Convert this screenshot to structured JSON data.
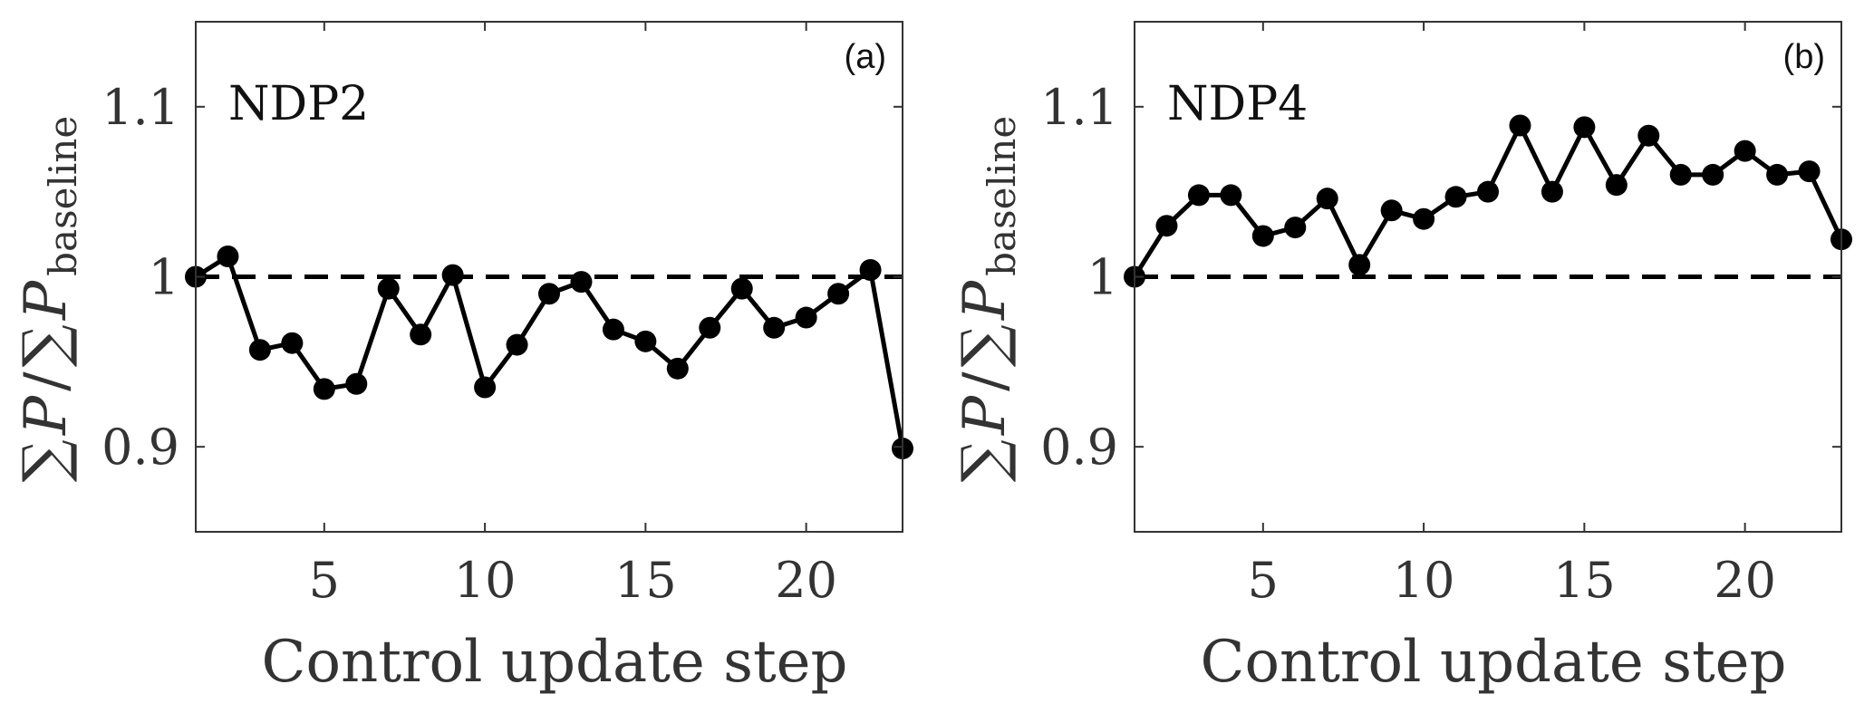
{
  "chart_data": [
    {
      "type": "line",
      "panel_label": "(a)",
      "title": "NDP2",
      "xlabel": "Control update step",
      "ylabel": {
        "sum1": "∑",
        "P1": "P",
        "slash": "/",
        "sum2": "∑",
        "P2": "P",
        "sub": "baseline"
      },
      "xlim": [
        1,
        23
      ],
      "ylim": [
        0.85,
        1.15
      ],
      "xticks": [
        5,
        10,
        15,
        20
      ],
      "xtick_labels": [
        "5",
        "10",
        "15",
        "20"
      ],
      "yticks": [
        0.9,
        1.0,
        1.1
      ],
      "ytick_labels": [
        "0.9",
        "1",
        "1.1"
      ],
      "reference_line": {
        "y": 1.0,
        "style": "dashed"
      },
      "series": [
        {
          "name": "NDP2",
          "marker": "circle",
          "x": [
            1,
            2,
            3,
            4,
            5,
            6,
            7,
            8,
            9,
            10,
            11,
            12,
            13,
            14,
            15,
            16,
            17,
            18,
            19,
            20,
            21,
            22,
            23
          ],
          "y": [
            1.0,
            1.012,
            0.957,
            0.961,
            0.934,
            0.937,
            0.993,
            0.966,
            1.001,
            0.935,
            0.96,
            0.99,
            0.997,
            0.969,
            0.962,
            0.946,
            0.97,
            0.993,
            0.97,
            0.976,
            0.99,
            1.004,
            0.899
          ]
        }
      ]
    },
    {
      "type": "line",
      "panel_label": "(b)",
      "title": "NDP4",
      "xlabel": "Control update step",
      "ylabel": {
        "sum1": "∑",
        "P1": "P",
        "slash": "/",
        "sum2": "∑",
        "P2": "P",
        "sub": "baseline"
      },
      "xlim": [
        1,
        23
      ],
      "ylim": [
        0.85,
        1.15
      ],
      "xticks": [
        5,
        10,
        15,
        20
      ],
      "xtick_labels": [
        "5",
        "10",
        "15",
        "20"
      ],
      "yticks": [
        0.9,
        1.0,
        1.1
      ],
      "ytick_labels": [
        "0.9",
        "1",
        "1.1"
      ],
      "reference_line": {
        "y": 1.0,
        "style": "dashed"
      },
      "series": [
        {
          "name": "NDP4",
          "marker": "circle",
          "x": [
            1,
            2,
            3,
            4,
            5,
            6,
            7,
            8,
            9,
            10,
            11,
            12,
            13,
            14,
            15,
            16,
            17,
            18,
            19,
            20,
            21,
            22,
            23
          ],
          "y": [
            1.0,
            1.03,
            1.048,
            1.048,
            1.024,
            1.029,
            1.046,
            1.007,
            1.039,
            1.034,
            1.047,
            1.05,
            1.089,
            1.05,
            1.088,
            1.054,
            1.083,
            1.06,
            1.06,
            1.074,
            1.06,
            1.062,
            1.022
          ]
        }
      ]
    }
  ]
}
